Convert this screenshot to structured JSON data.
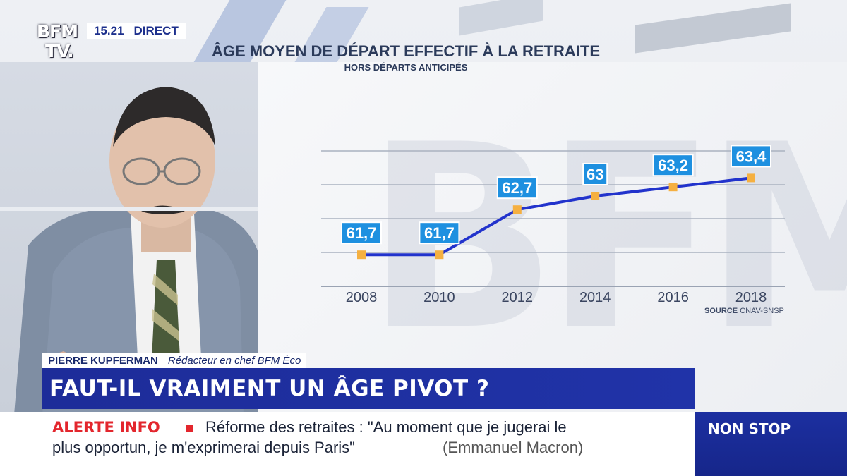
{
  "header": {
    "logo_line1": "BFM",
    "logo_line2": "TV.",
    "clock": "15.21",
    "live_label": "DIRECT"
  },
  "lower_third": {
    "name": "PIERRE KUPFERMAN",
    "role": "Rédacteur en chef BFM Éco",
    "headline": "FAUT-IL VRAIMENT UN ÂGE PIVOT ?"
  },
  "ticker": {
    "alert_label": "ALERTE INFO",
    "line1": "Réforme des retraites : \"Au moment que je jugerai le",
    "line2": "plus opportun, je m'exprimerai depuis Paris\"",
    "attribution": "(Emmanuel Macron)",
    "nonstop_label": "NON STOP"
  },
  "colors": {
    "brand_blue": "#1d2c99",
    "line": "#2233cc",
    "marker": "#f5b041",
    "label_bg": "#1e90e0",
    "alert_red": "#e3262d"
  },
  "chart_data": {
    "type": "line",
    "title": "ÂGE MOYEN DE DÉPART EFFECTIF À LA RETRAITE",
    "subtitle": "HORS DÉPARTS ANTICIPÉS",
    "source_prefix": "SOURCE",
    "source": "CNAV-SNSP",
    "categories": [
      "2008",
      "2010",
      "2012",
      "2014",
      "2016",
      "2018"
    ],
    "values": [
      61.7,
      61.7,
      62.7,
      63,
      63.2,
      63.4
    ],
    "data_labels": [
      "61,7",
      "61,7",
      "62,7",
      "63",
      "63,2",
      "63,4"
    ],
    "ylim": [
      61,
      64
    ],
    "grid": true
  }
}
